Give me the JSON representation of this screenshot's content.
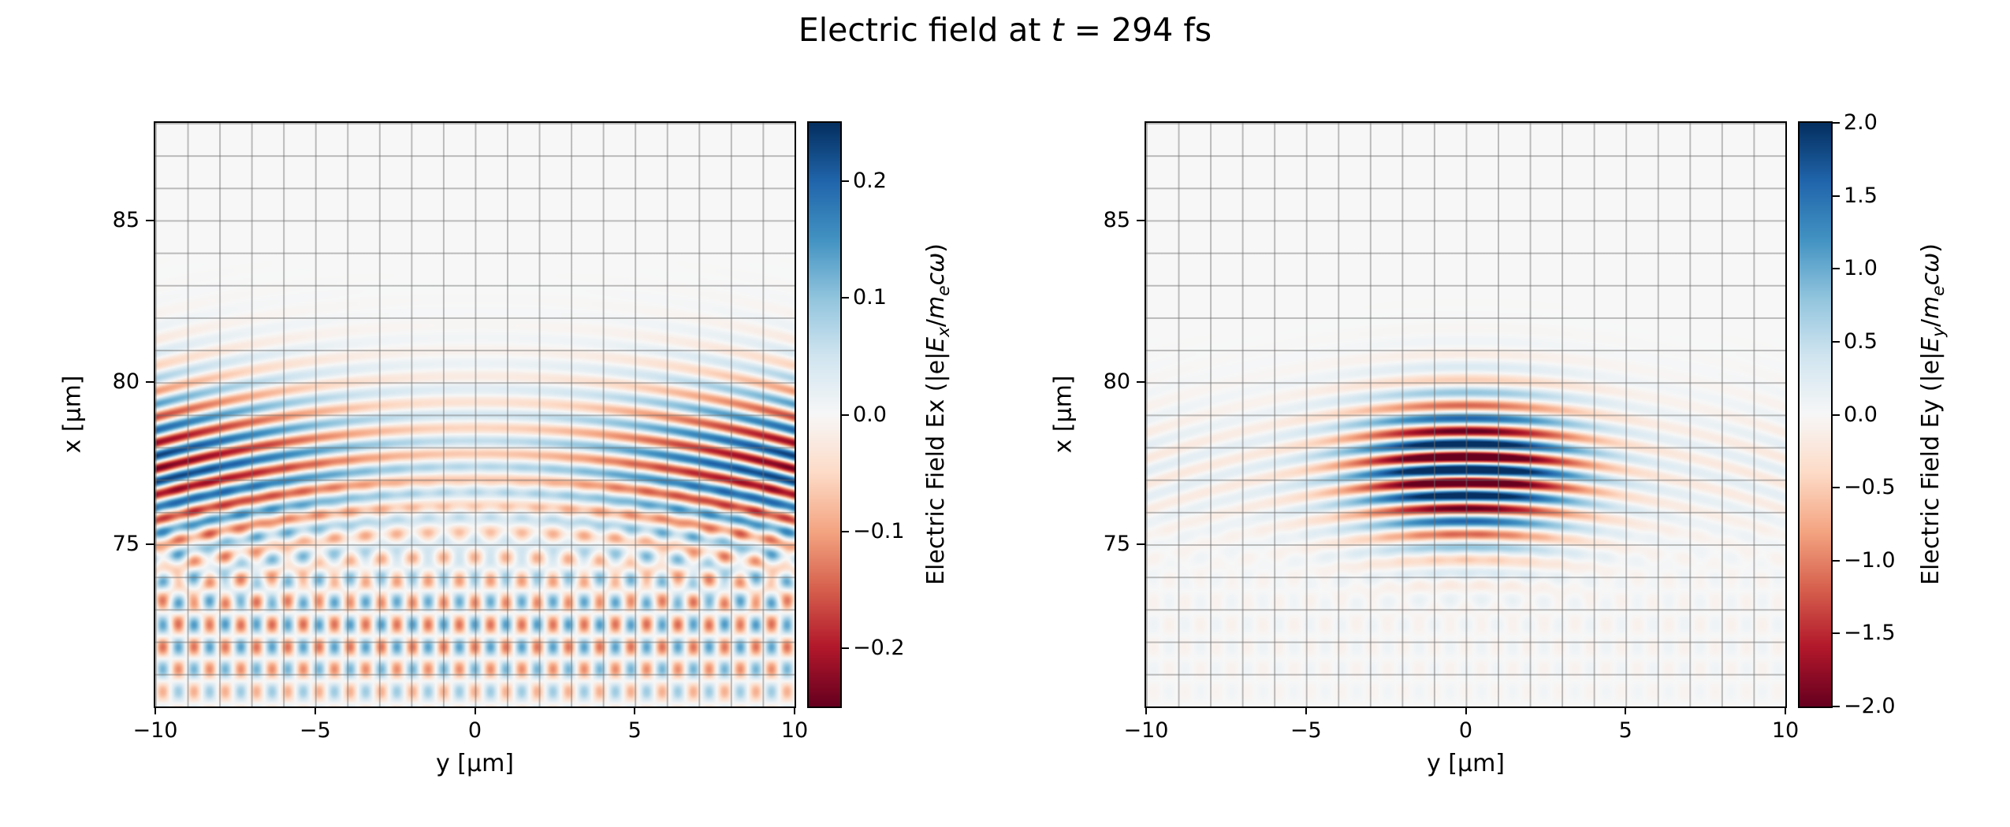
{
  "chart_data": {
    "type": "heatmap",
    "title": {
      "text": "Electric field at t = 294 fs",
      "prefix": "Electric field at ",
      "var": "t",
      "suffix": " = 294 fs"
    },
    "colormap": "RdBu",
    "colormap_stops": [
      "#67001f",
      "#b2182b",
      "#d6604d",
      "#f4a582",
      "#fddbc7",
      "#f7f7f7",
      "#d1e5f0",
      "#92c5de",
      "#4393c3",
      "#2166ac",
      "#053061"
    ],
    "grid": {
      "spacing_um": 1,
      "color": "rgba(110,110,110,0.45)",
      "on": true
    },
    "plots": [
      {
        "name": "Ex",
        "xlabel": "y [μm]",
        "ylabel": "x [μm]",
        "x_range": [
          -10,
          10
        ],
        "y_range": [
          70,
          88
        ],
        "x_tick_values": [
          -10,
          -5,
          0,
          5,
          10
        ],
        "x_tick_labels": [
          "−10",
          "−5",
          "0",
          "5",
          "10"
        ],
        "y_tick_values": [
          85,
          80,
          75
        ],
        "y_tick_labels": [
          "85",
          "80",
          "75"
        ],
        "clim": [
          -0.25,
          0.25
        ],
        "colorbar": {
          "tick_values": [
            0.2,
            0.1,
            0.0,
            -0.1,
            -0.2
          ],
          "tick_labels": [
            "0.2",
            "0.1",
            "0.0",
            "−0.1",
            "−0.2"
          ],
          "label": {
            "prefix": "Electric Field Ex (|e|",
            "E": "E",
            "E_sub": "x",
            "slash": "/",
            "m": "m",
            "m_sub": "e",
            "c": "c",
            "omega": "ω",
            "close": ")"
          }
        },
        "field_model": {
          "type": "laser_pulse_field",
          "description": "Weak transverse Ex stripes spanning full y width, strongest toward |y| edges, pulse centered near x=77.4 um, plus faint crossed scattered waves near x=72",
          "wavelength_um": 0.8,
          "pulse_center_x_um": 77.4,
          "pulse_length_um": 2.6,
          "phase_curvature": 0.1,
          "gauss_amplitude": 0.0,
          "waist_um": 3.4,
          "edge_amplitude": 0.27,
          "edge_base": 0.25,
          "edge_scale": 0.75,
          "edge_width1_um": 7,
          "edge_width2_um": 12,
          "scatter_amplitude": 0.07,
          "scatter_center_x_um": 72.3,
          "scatter_length_um": 2.8,
          "scatter_angle_deg": 55
        }
      },
      {
        "name": "Ey",
        "xlabel": "y [μm]",
        "ylabel": "x [μm]",
        "x_range": [
          -10,
          10
        ],
        "y_range": [
          70,
          88
        ],
        "x_tick_values": [
          -10,
          -5,
          0,
          5,
          10
        ],
        "x_tick_labels": [
          "−10",
          "−5",
          "0",
          "5",
          "10"
        ],
        "y_tick_values": [
          85,
          80,
          75
        ],
        "y_tick_labels": [
          "85",
          "80",
          "75"
        ],
        "clim": [
          -2.0,
          2.0
        ],
        "colorbar": {
          "tick_values": [
            2.0,
            1.5,
            1.0,
            0.5,
            0.0,
            -0.5,
            -1.0,
            -1.5,
            -2.0
          ],
          "tick_labels": [
            "2.0",
            "1.5",
            "1.0",
            "0.5",
            "0.0",
            "−0.5",
            "−1.0",
            "−1.5",
            "−2.0"
          ],
          "label": {
            "prefix": "Electric Field Ey (|e|",
            "E": "E",
            "E_sub": "y",
            "slash": "/",
            "m": "m",
            "m_sub": "e",
            "c": "c",
            "omega": "ω",
            "close": ")"
          }
        },
        "field_model": {
          "type": "laser_pulse_field",
          "description": "Strong laser pulse: saturated red/blue horizontal stripes centered at y=0, x~77.3 um, Gaussian envelope in y (waist ~3.4 um), curved wavefronts, faint edge stripes and weak scattered waves below",
          "wavelength_um": 0.8,
          "pulse_center_x_um": 77.3,
          "pulse_length_um": 2.1,
          "phase_curvature": 0.13,
          "gauss_amplitude": 2.8,
          "waist_um": 3.4,
          "edge_amplitude": 0.25,
          "edge_base": 0.25,
          "edge_scale": 0.75,
          "edge_width1_um": 7,
          "edge_width2_um": 12,
          "scatter_amplitude": 0.05,
          "scatter_center_x_um": 72.3,
          "scatter_length_um": 2.8,
          "scatter_angle_deg": 55
        }
      }
    ]
  }
}
